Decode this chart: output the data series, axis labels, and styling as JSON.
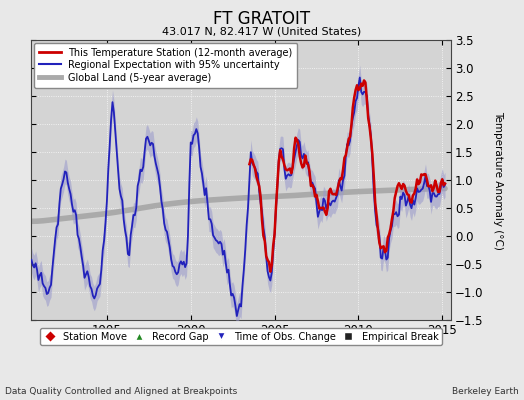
{
  "title": "FT GRATOIT",
  "subtitle": "43.017 N, 82.417 W (United States)",
  "ylabel": "Temperature Anomaly (°C)",
  "xlabel_left": "Data Quality Controlled and Aligned at Breakpoints",
  "xlabel_right": "Berkeley Earth",
  "ylim": [
    -1.5,
    3.5
  ],
  "xlim": [
    1990.5,
    2015.5
  ],
  "yticks": [
    -1.5,
    -1,
    -0.5,
    0,
    0.5,
    1,
    1.5,
    2,
    2.5,
    3,
    3.5
  ],
  "xticks": [
    1995,
    2000,
    2005,
    2010,
    2015
  ],
  "background_color": "#e8e8e8",
  "plot_bg_color": "#d4d4d4",
  "red_color": "#cc0000",
  "blue_color": "#2222bb",
  "blue_fill_color": "#9999cc",
  "gray_color": "#aaaaaa",
  "legend_items": [
    "This Temperature Station (12-month average)",
    "Regional Expectation with 95% uncertainty",
    "Global Land (5-year average)"
  ],
  "marker_legend": [
    {
      "label": "Station Move",
      "color": "#cc0000",
      "marker": "D"
    },
    {
      "label": "Record Gap",
      "color": "#228822",
      "marker": "^"
    },
    {
      "label": "Time of Obs. Change",
      "color": "#2222bb",
      "marker": "v"
    },
    {
      "label": "Empirical Break",
      "color": "#222222",
      "marker": "s"
    }
  ],
  "figsize": [
    5.24,
    4.0
  ],
  "dpi": 100
}
